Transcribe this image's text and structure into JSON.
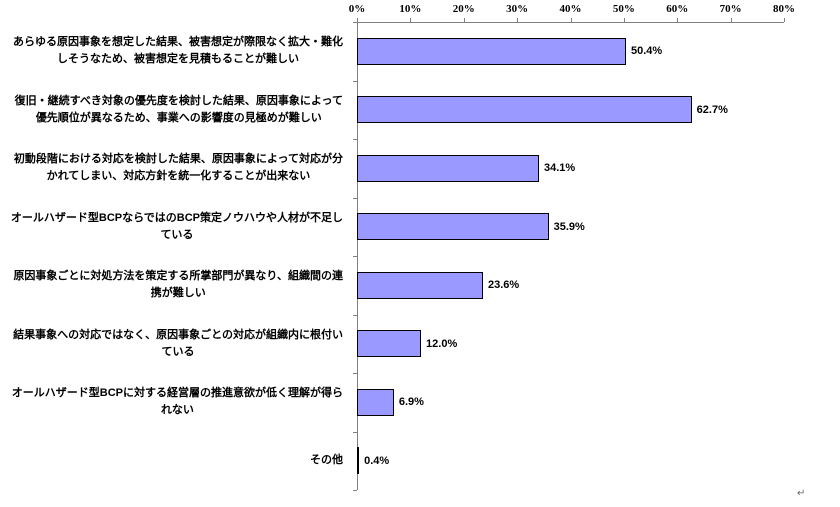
{
  "chart_data": {
    "type": "bar",
    "orientation": "horizontal",
    "title": "",
    "xlabel": "",
    "ylabel": "",
    "xlim": [
      0,
      80
    ],
    "grid": false,
    "legend": false,
    "bar_color": "#9999FF",
    "bar_border_color": "#000000",
    "axis_color": "#808080",
    "x_ticks": [
      "0%",
      "10%",
      "20%",
      "30%",
      "40%",
      "50%",
      "60%",
      "70%",
      "80%"
    ],
    "categories": [
      "あらゆる原因事象を想定した結果、被害想定が際限なく拡大・難化\nしそうなため、被害想定を見積もることが難しい",
      "復旧・継続すべき対象の優先度を検討した結果、原因事象によって\n優先順位が異なるため、事業への影響度の見極めが難しい",
      "初動段階における対応を検討した結果、原因事象によって対応が分\nかれてしまい、対応方針を統一化することが出来ない",
      "オールハザード型BCPならではのBCP策定ノウハウや人材が不足し\nている",
      "原因事象ごとに対処方法を策定する所掌部門が異なり、組織間の連\n携が難しい",
      "結果事象への対応ではなく、原因事象ごとの対応が組織内に根付い\nている",
      "オールハザード型BCPに対する経営層の推進意欲が低く理解が得ら\nれない",
      "その他"
    ],
    "values": [
      50.4,
      62.7,
      34.1,
      35.9,
      23.6,
      12.0,
      6.9,
      0.4
    ],
    "value_labels": [
      "50.4%",
      "62.7%",
      "34.1%",
      "35.9%",
      "23.6%",
      "12.0%",
      "6.9%",
      "0.4%"
    ]
  },
  "misc": {
    "return_mark": "↵"
  }
}
